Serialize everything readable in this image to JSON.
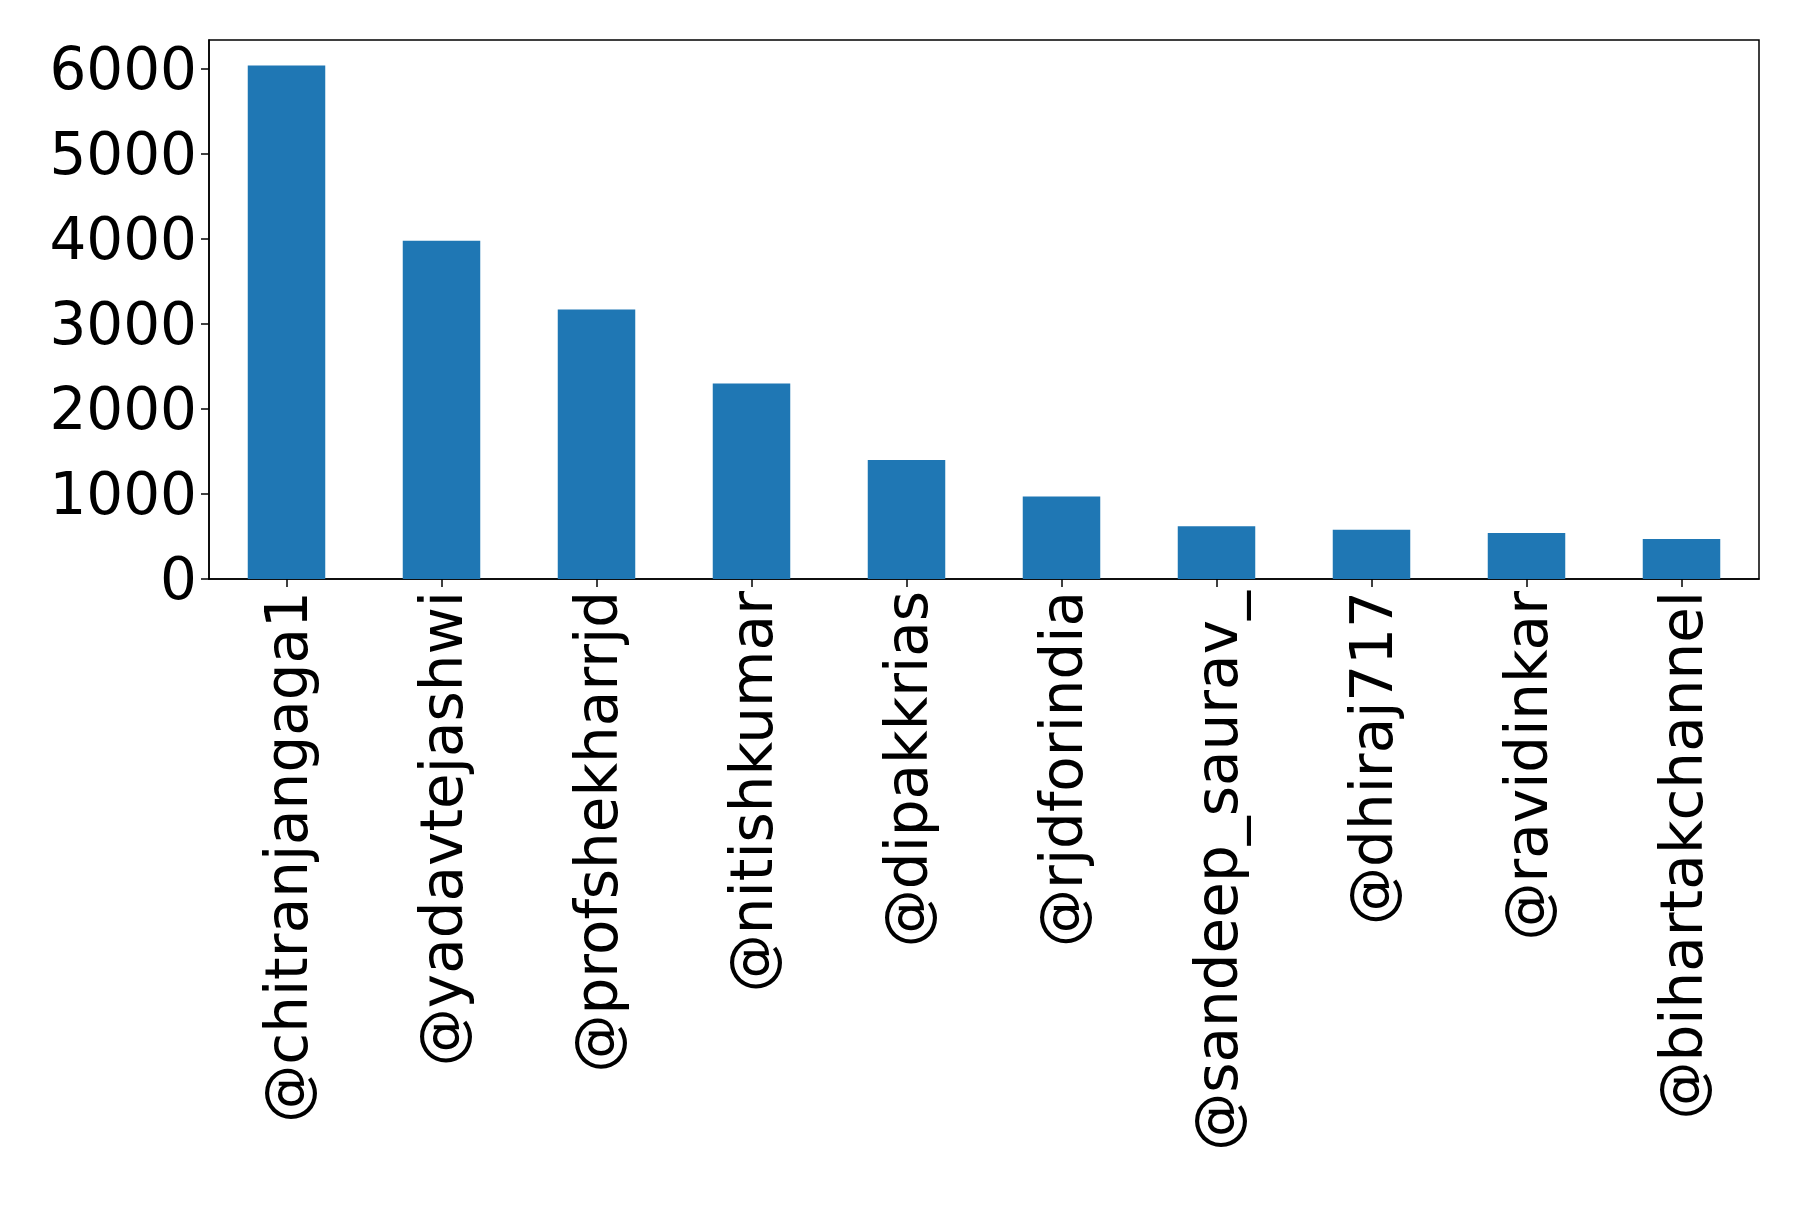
{
  "chart_data": {
    "type": "bar",
    "categories": [
      "@chitranjangaga1",
      "@yadavtejashwi",
      "@profshekharrjd",
      "@nitishkumar",
      "@dipakkrias",
      "@rjdforindia",
      "@sandeep_saurav_",
      "@dhiraj717",
      "@ravidinkar",
      "@bihartakchannel"
    ],
    "values": [
      6040,
      3980,
      3170,
      2300,
      1400,
      970,
      620,
      580,
      540,
      470
    ],
    "color": "#1f77b4",
    "ylim": [
      0,
      6340
    ],
    "yticks": [
      0,
      1000,
      2000,
      3000,
      4000,
      5000,
      6000
    ],
    "grid": false
  }
}
